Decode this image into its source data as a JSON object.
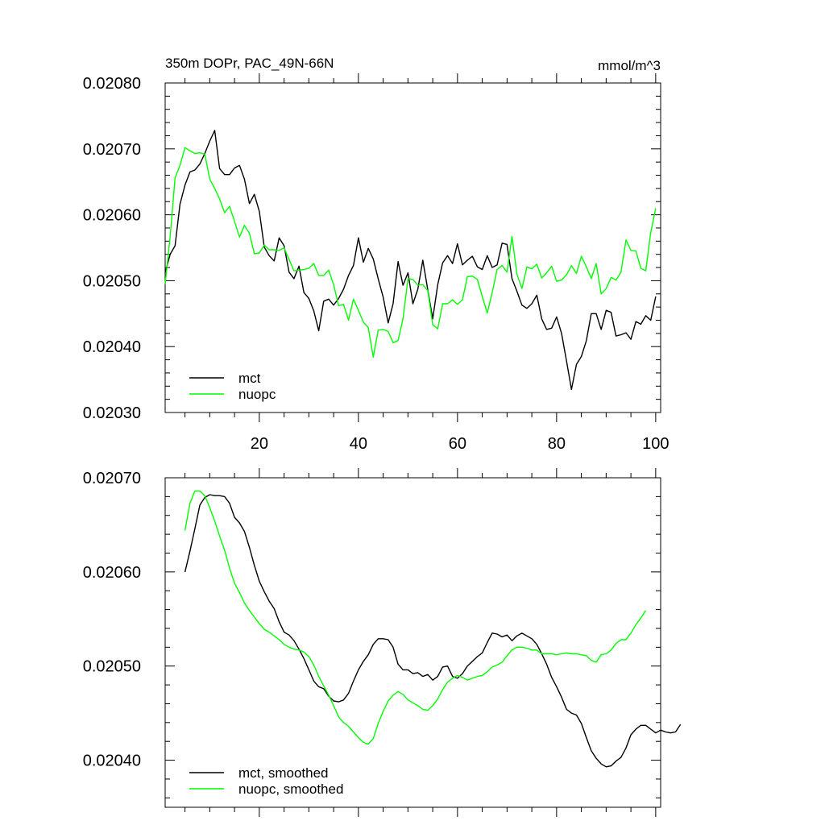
{
  "chart_data": [
    {
      "type": "line",
      "title": "350m DOPr, PAC_49N-66N",
      "units": "mmol/m^3",
      "xlim": [
        1,
        101
      ],
      "ylim": [
        0.0203,
        0.0208
      ],
      "yticks": [
        0.0203,
        0.0204,
        0.0205,
        0.0206,
        0.0207,
        0.0208
      ],
      "ytick_labels": [
        "0.02030",
        "0.02040",
        "0.02050",
        "0.02060",
        "0.02070",
        "0.02080"
      ],
      "xticks": [
        20,
        40,
        60,
        80,
        100
      ],
      "xtick_labels": [
        "20",
        "40",
        "60",
        "80",
        "100"
      ],
      "legend": "bottom-left",
      "series": [
        {
          "name": "mct",
          "color": "#000000",
          "x_start": 1,
          "values": [
            0.020512,
            0.02054,
            0.020553,
            0.020616,
            0.020645,
            0.020665,
            0.020668,
            0.020677,
            0.020693,
            0.020712,
            0.020728,
            0.02067,
            0.020661,
            0.020661,
            0.020671,
            0.020675,
            0.020654,
            0.020617,
            0.020631,
            0.020605,
            0.020551,
            0.020538,
            0.02053,
            0.020565,
            0.020553,
            0.020513,
            0.020503,
            0.020522,
            0.020482,
            0.020473,
            0.020454,
            0.020424,
            0.020469,
            0.020472,
            0.020463,
            0.020473,
            0.020487,
            0.020508,
            0.020523,
            0.020565,
            0.020528,
            0.020549,
            0.020533,
            0.020503,
            0.020475,
            0.020436,
            0.020465,
            0.020529,
            0.020493,
            0.020512,
            0.020465,
            0.020487,
            0.020531,
            0.020486,
            0.020442,
            0.020494,
            0.020527,
            0.020538,
            0.020526,
            0.020556,
            0.020524,
            0.020531,
            0.020537,
            0.020521,
            0.020517,
            0.020538,
            0.02052,
            0.020524,
            0.020557,
            0.020555,
            0.020503,
            0.020484,
            0.020463,
            0.020458,
            0.020465,
            0.020478,
            0.020442,
            0.020426,
            0.020428,
            0.020445,
            0.02042,
            0.020378,
            0.020335,
            0.020373,
            0.020385,
            0.020409,
            0.02045,
            0.02045,
            0.020426,
            0.020455,
            0.020452,
            0.020416,
            0.020418,
            0.020421,
            0.020411,
            0.020438,
            0.020434,
            0.020447,
            0.02044,
            0.020476
          ]
        },
        {
          "name": "nuopc",
          "color": "#00ff00",
          "x_start": 1,
          "values": [
            0.020495,
            0.020567,
            0.020656,
            0.020675,
            0.020702,
            0.020697,
            0.020693,
            0.020694,
            0.020692,
            0.020654,
            0.02064,
            0.020624,
            0.020603,
            0.020613,
            0.02059,
            0.020566,
            0.020584,
            0.020572,
            0.020541,
            0.020542,
            0.020554,
            0.020547,
            0.020547,
            0.020546,
            0.02055,
            0.020532,
            0.020515,
            0.020516,
            0.020517,
            0.020519,
            0.020526,
            0.020508,
            0.020508,
            0.020516,
            0.020494,
            0.020462,
            0.020464,
            0.02044,
            0.020472,
            0.020455,
            0.020437,
            0.020429,
            0.020384,
            0.020425,
            0.020426,
            0.020423,
            0.020406,
            0.020409,
            0.020442,
            0.020503,
            0.020502,
            0.020493,
            0.020494,
            0.020485,
            0.020433,
            0.020427,
            0.020465,
            0.020465,
            0.020471,
            0.020464,
            0.020471,
            0.020506,
            0.020507,
            0.020502,
            0.020476,
            0.020451,
            0.020482,
            0.020517,
            0.020523,
            0.020513,
            0.020567,
            0.02051,
            0.020488,
            0.020521,
            0.020518,
            0.020525,
            0.020504,
            0.020512,
            0.020522,
            0.020499,
            0.020501,
            0.020509,
            0.020523,
            0.020511,
            0.020537,
            0.020521,
            0.020503,
            0.020526,
            0.02048,
            0.020488,
            0.020505,
            0.020501,
            0.020513,
            0.020562,
            0.020546,
            0.020545,
            0.020519,
            0.020515,
            0.020573,
            0.02061
          ]
        }
      ]
    },
    {
      "type": "line",
      "xlim": [
        1,
        101
      ],
      "ylim": [
        0.02035,
        0.0207
      ],
      "yticks": [
        0.0204,
        0.0205,
        0.0206,
        0.0207
      ],
      "ytick_labels": [
        "0.02040",
        "0.02050",
        "0.02060",
        "0.02070"
      ],
      "legend": "bottom-left",
      "series": [
        {
          "name": "mct, smoothed",
          "color": "#000000",
          "x_start": 5,
          "values": [
            0.0206,
            0.020622,
            0.020646,
            0.020671,
            0.020679,
            0.020682,
            0.020681,
            0.020681,
            0.02068,
            0.020673,
            0.020658,
            0.020652,
            0.020643,
            0.020626,
            0.020607,
            0.02059,
            0.020579,
            0.020569,
            0.020561,
            0.020547,
            0.020536,
            0.020533,
            0.020527,
            0.020518,
            0.020508,
            0.020496,
            0.020484,
            0.020478,
            0.020476,
            0.020468,
            0.020463,
            0.020462,
            0.020464,
            0.020471,
            0.020484,
            0.020496,
            0.020505,
            0.020512,
            0.020523,
            0.020529,
            0.020529,
            0.020528,
            0.02052,
            0.020502,
            0.020496,
            0.020496,
            0.020492,
            0.020493,
            0.020489,
            0.020491,
            0.020485,
            0.020489,
            0.020499,
            0.0205,
            0.020489,
            0.020487,
            0.020492,
            0.0205,
            0.020505,
            0.02051,
            0.020514,
            0.020525,
            0.020535,
            0.020534,
            0.020531,
            0.020533,
            0.020527,
            0.020532,
            0.020535,
            0.020532,
            0.020529,
            0.020523,
            0.020513,
            0.020502,
            0.020488,
            0.020478,
            0.020467,
            0.020454,
            0.02045,
            0.020448,
            0.020439,
            0.020424,
            0.02041,
            0.020402,
            0.020396,
            0.020393,
            0.020394,
            0.020399,
            0.020403,
            0.020413,
            0.020427,
            0.020433,
            0.020437,
            0.020437,
            0.020433,
            0.020429,
            0.020432,
            0.02043,
            0.020429,
            0.02043,
            0.020438
          ]
        },
        {
          "name": "nuopc, smoothed",
          "color": "#00ff00",
          "x_start": 5,
          "values": [
            0.020644,
            0.020673,
            0.020686,
            0.020686,
            0.020681,
            0.020668,
            0.020654,
            0.020638,
            0.020623,
            0.020604,
            0.020588,
            0.020578,
            0.020567,
            0.020559,
            0.020552,
            0.020545,
            0.020539,
            0.020536,
            0.020532,
            0.020528,
            0.020523,
            0.02052,
            0.020518,
            0.020517,
            0.020515,
            0.02051,
            0.020501,
            0.020489,
            0.020479,
            0.020469,
            0.020458,
            0.020446,
            0.02044,
            0.020436,
            0.02043,
            0.020424,
            0.020419,
            0.020417,
            0.020423,
            0.020439,
            0.020452,
            0.020463,
            0.020469,
            0.020473,
            0.02047,
            0.020464,
            0.020461,
            0.020458,
            0.020454,
            0.020453,
            0.020458,
            0.020465,
            0.020475,
            0.020483,
            0.020487,
            0.02049,
            0.020488,
            0.020485,
            0.020487,
            0.020489,
            0.02049,
            0.020494,
            0.020499,
            0.020501,
            0.020504,
            0.020511,
            0.020517,
            0.02052,
            0.02052,
            0.020519,
            0.020517,
            0.020517,
            0.020513,
            0.020513,
            0.020513,
            0.020512,
            0.020513,
            0.020514,
            0.020513,
            0.020513,
            0.020512,
            0.020511,
            0.020506,
            0.020504,
            0.020512,
            0.020513,
            0.020517,
            0.020524,
            0.020528,
            0.020528,
            0.020535,
            0.020544,
            0.020551,
            0.020559
          ]
        }
      ]
    }
  ]
}
